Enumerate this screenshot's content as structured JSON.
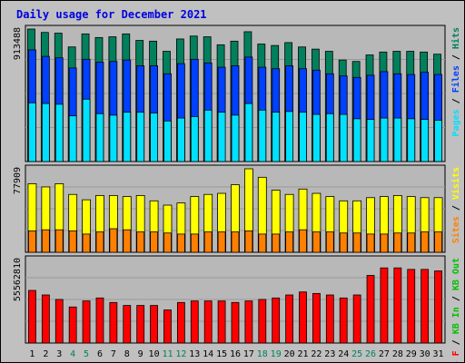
{
  "window": {
    "title": "Daily usage for December 2021"
  },
  "colors": {
    "hits": "#00805c",
    "files": "#0040ff",
    "pages": "#00e0ff",
    "visits": "#ffff00",
    "sites": "#ff8000",
    "kbin": "#ff0000",
    "kbout": "#00c000",
    "kb": "#ff0000",
    "weekend": "#00805c",
    "weekday": "#000000",
    "panel": "#b8b8b8"
  },
  "chart_data": [
    {
      "type": "bar",
      "panel": "hits-files-pages",
      "title": "Daily usage for December 2021",
      "ylabel_max": "913488",
      "categories": [
        "1",
        "2",
        "3",
        "4",
        "5",
        "6",
        "7",
        "8",
        "9",
        "10",
        "11",
        "12",
        "13",
        "14",
        "15",
        "16",
        "17",
        "18",
        "19",
        "20",
        "21",
        "22",
        "23",
        "24",
        "25",
        "26",
        "27",
        "28",
        "29",
        "30",
        "31"
      ],
      "ylim": [
        0,
        913488
      ],
      "series": [
        {
          "name": "Hits",
          "values": [
            913488,
            890000,
            885000,
            790000,
            880000,
            855000,
            860000,
            880000,
            835000,
            830000,
            760000,
            845000,
            865000,
            860000,
            805000,
            830000,
            895000,
            810000,
            800000,
            820000,
            790000,
            775000,
            760000,
            700000,
            690000,
            735000,
            755000,
            760000,
            760000,
            755000,
            740000
          ]
        },
        {
          "name": "Files",
          "values": [
            770000,
            725000,
            715000,
            645000,
            705000,
            685000,
            690000,
            700000,
            660000,
            660000,
            605000,
            675000,
            705000,
            680000,
            650000,
            660000,
            720000,
            650000,
            640000,
            660000,
            640000,
            630000,
            605000,
            590000,
            580000,
            595000,
            620000,
            605000,
            600000,
            615000,
            600000
          ]
        },
        {
          "name": "Pages",
          "values": [
            405000,
            400000,
            395000,
            315000,
            430000,
            330000,
            320000,
            340000,
            340000,
            335000,
            280000,
            300000,
            310000,
            355000,
            340000,
            320000,
            400000,
            355000,
            340000,
            345000,
            340000,
            325000,
            330000,
            325000,
            295000,
            290000,
            300000,
            300000,
            295000,
            290000,
            285000
          ]
        }
      ],
      "legend": [
        "Pages",
        "/",
        "Files",
        "/",
        "Hits"
      ]
    },
    {
      "type": "bar",
      "panel": "visits-sites",
      "ylabel_max": "77909",
      "categories": [
        "1",
        "2",
        "3",
        "4",
        "5",
        "6",
        "7",
        "8",
        "9",
        "10",
        "11",
        "12",
        "13",
        "14",
        "15",
        "16",
        "17",
        "18",
        "19",
        "20",
        "21",
        "22",
        "23",
        "24",
        "25",
        "26",
        "27",
        "28",
        "29",
        "30",
        "31"
      ],
      "ylim": [
        0,
        77909
      ],
      "series": [
        {
          "name": "Visits",
          "values": [
            64000,
            61000,
            64000,
            54000,
            49000,
            53000,
            53000,
            52000,
            53000,
            48000,
            44000,
            46000,
            52000,
            54000,
            55000,
            63000,
            77909,
            70000,
            58000,
            54000,
            59000,
            55000,
            52000,
            48000,
            48000,
            51000,
            52000,
            53000,
            52000,
            51000,
            51000
          ]
        },
        {
          "name": "Sites",
          "values": [
            20000,
            21000,
            21000,
            20000,
            17000,
            19000,
            22000,
            21000,
            19000,
            19000,
            18000,
            17000,
            17000,
            19000,
            19000,
            19000,
            20000,
            17000,
            17000,
            19000,
            21000,
            19000,
            19000,
            18000,
            18000,
            17000,
            17000,
            18000,
            18000,
            19000,
            19000
          ]
        }
      ],
      "legend": [
        "Sites",
        "/",
        "Visits"
      ]
    },
    {
      "type": "bar",
      "panel": "kbytes",
      "ylabel_max": "55562810",
      "categories": [
        "1",
        "2",
        "3",
        "4",
        "5",
        "6",
        "7",
        "8",
        "9",
        "10",
        "11",
        "12",
        "13",
        "14",
        "15",
        "16",
        "17",
        "18",
        "19",
        "20",
        "21",
        "22",
        "23",
        "24",
        "25",
        "26",
        "27",
        "28",
        "29",
        "30",
        "31"
      ],
      "ylim": [
        0,
        55562810
      ],
      "series": [
        {
          "name": "KB F",
          "values": [
            35000000,
            32000000,
            29000000,
            24000000,
            28000000,
            30000000,
            27000000,
            25000000,
            25000000,
            25000000,
            22000000,
            27000000,
            28000000,
            28000000,
            28000000,
            27000000,
            28000000,
            29000000,
            30000000,
            32000000,
            34000000,
            33000000,
            32000000,
            30000000,
            32000000,
            45000000,
            50000000,
            50000000,
            49000000,
            49000000,
            48000000
          ]
        }
      ],
      "legend": [
        "KB F",
        "/",
        "KB In",
        "/",
        "KB Out"
      ]
    }
  ],
  "x_labels": [
    {
      "d": "1",
      "weekend": false
    },
    {
      "d": "2",
      "weekend": false
    },
    {
      "d": "3",
      "weekend": false
    },
    {
      "d": "4",
      "weekend": true
    },
    {
      "d": "5",
      "weekend": true
    },
    {
      "d": "6",
      "weekend": false
    },
    {
      "d": "7",
      "weekend": false
    },
    {
      "d": "8",
      "weekend": false
    },
    {
      "d": "9",
      "weekend": false
    },
    {
      "d": "10",
      "weekend": false
    },
    {
      "d": "11",
      "weekend": true
    },
    {
      "d": "12",
      "weekend": true
    },
    {
      "d": "13",
      "weekend": false
    },
    {
      "d": "14",
      "weekend": false
    },
    {
      "d": "15",
      "weekend": false
    },
    {
      "d": "16",
      "weekend": false
    },
    {
      "d": "17",
      "weekend": false
    },
    {
      "d": "18",
      "weekend": true
    },
    {
      "d": "19",
      "weekend": true
    },
    {
      "d": "20",
      "weekend": false
    },
    {
      "d": "21",
      "weekend": false
    },
    {
      "d": "22",
      "weekend": false
    },
    {
      "d": "23",
      "weekend": false
    },
    {
      "d": "24",
      "weekend": false
    },
    {
      "d": "25",
      "weekend": true
    },
    {
      "d": "26",
      "weekend": true
    },
    {
      "d": "27",
      "weekend": false
    },
    {
      "d": "28",
      "weekend": false
    },
    {
      "d": "29",
      "weekend": false
    },
    {
      "d": "30",
      "weekend": false
    },
    {
      "d": "31",
      "weekend": false
    }
  ]
}
